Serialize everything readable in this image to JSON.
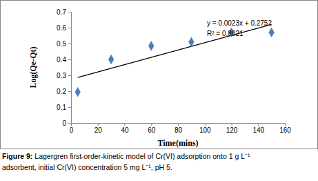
{
  "chart_data": {
    "type": "scatter",
    "x_label": "Time(mins)",
    "y_label": "Log(Qe-Qt)",
    "x": [
      5,
      30,
      60,
      90,
      120,
      150
    ],
    "values": [
      0.195,
      0.4,
      0.485,
      0.51,
      0.57,
      0.57
    ],
    "color": "#4a7ebb",
    "marker": "diamond",
    "xlim": [
      0,
      160
    ],
    "xticks": [
      0,
      20,
      40,
      60,
      80,
      100,
      120,
      140,
      160
    ],
    "ylim": [
      0,
      0.7
    ],
    "yticks": [
      0,
      0.1,
      0.2,
      0.3,
      0.4,
      0.5,
      0.6,
      0.7
    ],
    "grid": false,
    "trendline": {
      "x": [
        5,
        150
      ],
      "values": [
        0.2867,
        0.6202
      ],
      "color": "#000000",
      "line_style": "solid",
      "equation": "y = 0.0023x + 0.2752",
      "r_squared": "R² = 0.8021"
    },
    "figure_label": "Figure 9:",
    "caption": [
      "Lagergren first-order-kinetic model of Cr(VI) adsorption onto 1 g L⁻¹",
      "adsorbent, initial Cr(VI) concentration 5 mg L⁻¹, pH 5."
    ]
  }
}
